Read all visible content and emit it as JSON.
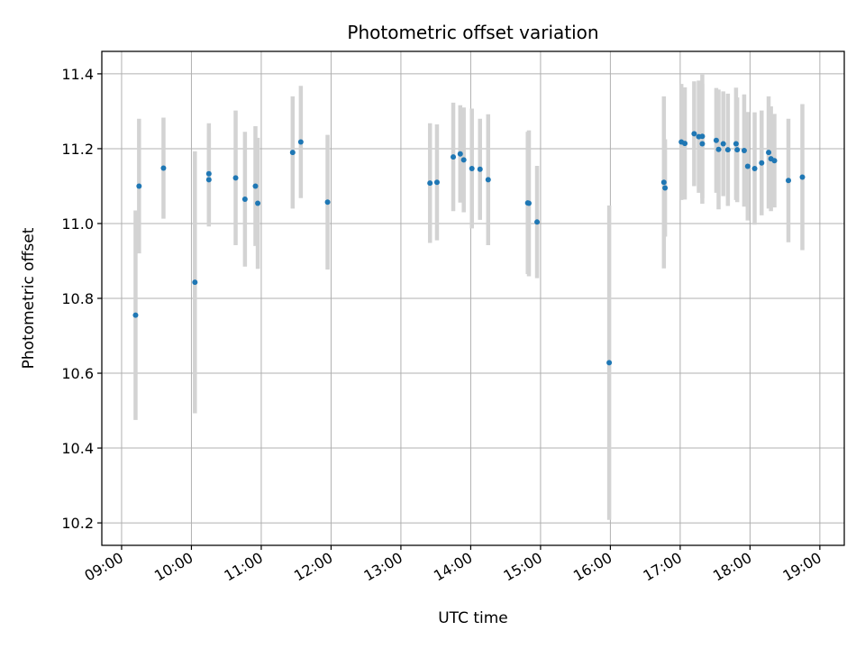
{
  "chart_data": {
    "type": "scatter",
    "title": "Photometric offset variation",
    "xlabel": "UTC time",
    "ylabel": "Photometric offset",
    "grid": true,
    "x_tick_labels": [
      "09:00",
      "10:00",
      "11:00",
      "12:00",
      "13:00",
      "14:00",
      "15:00",
      "16:00",
      "17:00",
      "18:00",
      "19:00"
    ],
    "y_tick_labels": [
      "10.2",
      "10.4",
      "10.6",
      "10.8",
      "11.0",
      "11.2",
      "11.4"
    ],
    "xlim": [
      "08:43",
      "19:21"
    ],
    "ylim": [
      10.14,
      11.46
    ],
    "colors": {
      "point": "#1f77b4",
      "errorbar": "#d3d3d3",
      "grid": "#b0b0b0"
    },
    "x": [
      "09:12",
      "09:15",
      "09:36",
      "10:03",
      "10:15",
      "10:15",
      "10:38",
      "10:46",
      "10:55",
      "10:57",
      "11:27",
      "11:34",
      "11:57",
      "13:25",
      "13:31",
      "13:45",
      "13:51",
      "13:54",
      "14:01",
      "14:08",
      "14:15",
      "14:49",
      "14:50",
      "14:57",
      "15:59",
      "16:46",
      "16:47",
      "17:01",
      "17:04",
      "17:12",
      "17:16",
      "17:19",
      "17:19",
      "17:31",
      "17:33",
      "17:37",
      "17:41",
      "17:48",
      "17:49",
      "17:55",
      "17:58",
      "18:04",
      "18:10",
      "18:16",
      "18:18",
      "18:21",
      "18:33",
      "18:45"
    ],
    "y": [
      10.755,
      11.1,
      11.148,
      10.843,
      11.117,
      11.133,
      11.122,
      11.065,
      11.1,
      11.054,
      11.19,
      11.218,
      11.057,
      11.108,
      11.11,
      11.178,
      11.186,
      11.17,
      11.147,
      11.145,
      11.117,
      11.055,
      11.054,
      11.004,
      10.628,
      11.11,
      11.095,
      11.218,
      11.214,
      11.24,
      11.232,
      11.213,
      11.233,
      11.222,
      11.198,
      11.213,
      11.197,
      11.213,
      11.197,
      11.195,
      11.153,
      11.147,
      11.162,
      11.19,
      11.173,
      11.168,
      11.115,
      11.124
    ],
    "yerr": [
      0.28,
      0.18,
      0.135,
      0.35,
      0.125,
      0.135,
      0.18,
      0.18,
      0.16,
      0.175,
      0.15,
      0.15,
      0.18,
      0.16,
      0.155,
      0.145,
      0.13,
      0.14,
      0.16,
      0.135,
      0.175,
      0.19,
      0.195,
      0.15,
      0.42,
      0.23,
      0.13,
      0.155,
      0.15,
      0.14,
      0.15,
      0.16,
      0.165,
      0.14,
      0.16,
      0.14,
      0.15,
      0.15,
      0.14,
      0.15,
      0.145,
      0.15,
      0.14,
      0.15,
      0.14,
      0.125,
      0.165,
      0.195
    ]
  }
}
